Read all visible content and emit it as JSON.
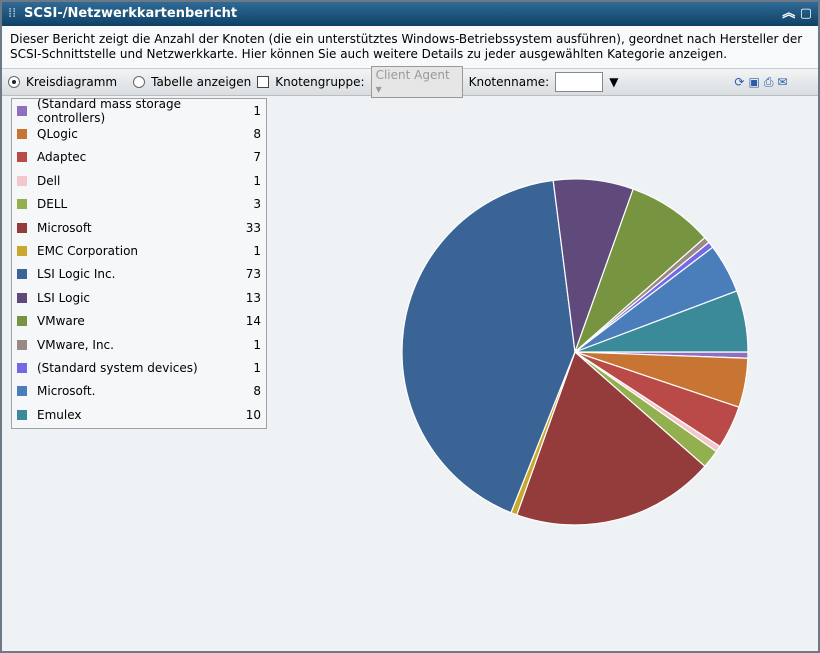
{
  "header": {
    "title": "SCSI-/Netzwerkkartenbericht"
  },
  "description": "Dieser Bericht zeigt die Anzahl der Knoten (die ein unterstütztes Windows-Betriebssystem ausführen), geordnet nach Hersteller der SCSI-Schnittstelle und Netzwerkkarte. Hier können Sie auch weitere Details zu jeder ausgewählten Kategorie anzeigen.",
  "toolbar": {
    "pie_option": "Kreisdiagramm",
    "table_option": "Tabelle anzeigen",
    "node_group_label": "Knotengruppe:",
    "node_group_value": "Client Agent",
    "node_name_label": "Knotenname:"
  },
  "chart_data": {
    "type": "pie",
    "categories": [
      "(Standard mass storage controllers)",
      "QLogic",
      "Adaptec",
      "Dell",
      "DELL",
      "Microsoft",
      "EMC Corporation",
      "LSI Logic Inc.",
      "LSI Logic",
      "VMware",
      "VMware, Inc.",
      "(Standard system devices)",
      "Microsoft.",
      "Emulex"
    ],
    "values": [
      1,
      8,
      7,
      1,
      3,
      33,
      1,
      73,
      13,
      14,
      1,
      1,
      8,
      10
    ],
    "colors": [
      "#8f6fbf",
      "#c87533",
      "#b94a48",
      "#f4c7cc",
      "#93b04f",
      "#943c3c",
      "#c9a830",
      "#3b6496",
      "#604a7b",
      "#779440",
      "#9a8884",
      "#7368e6",
      "#4a7ebb",
      "#3a8a9a"
    ]
  }
}
